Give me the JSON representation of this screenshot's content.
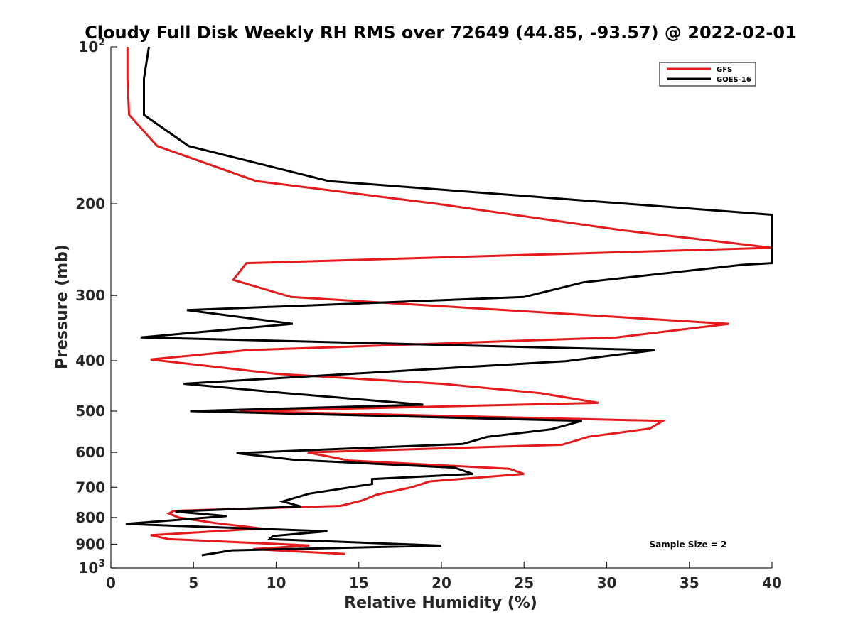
{
  "chart_data": {
    "type": "line",
    "title": "Cloudy Full Disk Weekly RH RMS over 72649 (44.85, -93.57) @ 2022-02-01",
    "xlabel": "Relative Humidity (%)",
    "ylabel": "Pressure (mb)",
    "xlim": [
      0,
      40
    ],
    "ylim": [
      100,
      1000
    ],
    "y_scale": "log",
    "y_reversed": true,
    "grid": false,
    "x_ticks": [
      0,
      5,
      10,
      15,
      20,
      25,
      30,
      35,
      40
    ],
    "y_ticks": [
      {
        "value": 100,
        "base": "10",
        "exp": "2"
      },
      {
        "value": 200,
        "label": "200"
      },
      {
        "value": 300,
        "label": "300"
      },
      {
        "value": 400,
        "label": "400"
      },
      {
        "value": 500,
        "label": "500"
      },
      {
        "value": 600,
        "label": "600"
      },
      {
        "value": 700,
        "label": "700"
      },
      {
        "value": 800,
        "label": "800"
      },
      {
        "value": 900,
        "label": "900"
      },
      {
        "value": 1000,
        "base": "10",
        "exp": "3"
      }
    ],
    "legend_position": "top-right",
    "annotation": "Sample Size = 2",
    "series": [
      {
        "name": "GFS",
        "color": "#e41a1c",
        "points": [
          [
            1.0,
            100
          ],
          [
            1.0,
            115
          ],
          [
            1.1,
            135
          ],
          [
            2.8,
            155
          ],
          [
            8.8,
            181
          ],
          [
            19.7,
            200
          ],
          [
            31.0,
            225
          ],
          [
            40.0,
            243
          ],
          [
            8.2,
            260
          ],
          [
            7.4,
            280
          ],
          [
            10.9,
            302
          ],
          [
            26.0,
            323
          ],
          [
            37.4,
            340
          ],
          [
            30.6,
            361
          ],
          [
            8.2,
            382
          ],
          [
            2.4,
            398
          ],
          [
            10.0,
            424
          ],
          [
            20.0,
            443
          ],
          [
            26.0,
            462
          ],
          [
            29.5,
            482
          ],
          [
            7.8,
            500
          ],
          [
            33.4,
            522
          ],
          [
            32.6,
            540
          ],
          [
            28.9,
            560
          ],
          [
            27.3,
            580
          ],
          [
            11.9,
            600
          ],
          [
            14.4,
            622
          ],
          [
            24.1,
            645
          ],
          [
            25.0,
            660
          ],
          [
            19.3,
            682
          ],
          [
            18.2,
            700
          ],
          [
            16.1,
            723
          ],
          [
            15.2,
            742
          ],
          [
            13.9,
            760
          ],
          [
            3.8,
            777
          ],
          [
            3.5,
            786
          ],
          [
            4.1,
            800
          ],
          [
            6.3,
            820
          ],
          [
            9.1,
            840
          ],
          [
            2.4,
            865
          ],
          [
            3.5,
            880
          ],
          [
            12.0,
            905
          ],
          [
            8.6,
            920
          ],
          [
            14.2,
            940
          ]
        ]
      },
      {
        "name": "GOES-16",
        "color": "#000000",
        "points": [
          [
            2.3,
            100
          ],
          [
            2.0,
            115
          ],
          [
            2.0,
            135
          ],
          [
            4.7,
            155
          ],
          [
            13.2,
            181
          ],
          [
            40.0,
            210
          ],
          [
            40.0,
            260
          ],
          [
            38.2,
            262
          ],
          [
            28.6,
            283
          ],
          [
            25.0,
            302
          ],
          [
            4.6,
            320
          ],
          [
            11.0,
            340
          ],
          [
            1.8,
            361
          ],
          [
            32.9,
            382
          ],
          [
            27.5,
            401
          ],
          [
            17.9,
            418
          ],
          [
            4.4,
            443
          ],
          [
            10.6,
            462
          ],
          [
            18.9,
            486
          ],
          [
            4.8,
            500
          ],
          [
            28.5,
            522
          ],
          [
            26.6,
            542
          ],
          [
            22.8,
            560
          ],
          [
            21.3,
            578
          ],
          [
            7.6,
            602
          ],
          [
            11.1,
            620
          ],
          [
            20.8,
            642
          ],
          [
            21.9,
            660
          ],
          [
            15.8,
            675
          ],
          [
            15.8,
            690
          ],
          [
            12.0,
            720
          ],
          [
            10.4,
            745
          ],
          [
            11.5,
            762
          ],
          [
            3.9,
            779
          ],
          [
            7.0,
            795
          ],
          [
            0.9,
            823
          ],
          [
            6.2,
            835
          ],
          [
            13.1,
            850
          ],
          [
            9.8,
            868
          ],
          [
            9.6,
            880
          ],
          [
            20.0,
            906
          ],
          [
            7.3,
            925
          ],
          [
            5.5,
            945
          ]
        ]
      }
    ]
  }
}
